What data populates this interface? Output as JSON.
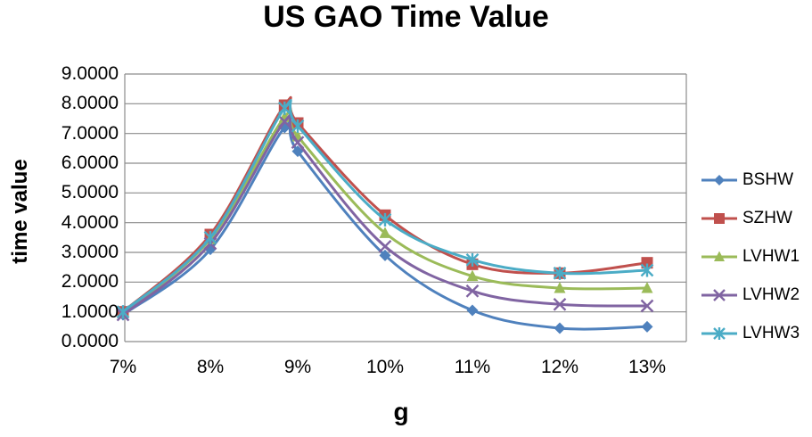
{
  "title": "US GAO Time Value",
  "chart_data": {
    "type": "line",
    "title": "US GAO Time Value",
    "xlabel": "g",
    "ylabel": "time value",
    "grid": true,
    "legend_position": "right",
    "xlim": [
      7,
      13.45
    ],
    "ylim": [
      0,
      9
    ],
    "x_tick_values": [
      7,
      8,
      9,
      10,
      11,
      12,
      13
    ],
    "x_tick_labels": [
      "7%",
      "8%",
      "9%",
      "10%",
      "11%",
      "12%",
      "13%"
    ],
    "y_tick_values": [
      0,
      1,
      2,
      3,
      4,
      5,
      6,
      7,
      8,
      9
    ],
    "y_tick_labels": [
      "0.0000",
      "1.0000",
      "2.0000",
      "3.0000",
      "4.0000",
      "5.0000",
      "6.0000",
      "7.0000",
      "8.0000",
      "9.0000"
    ],
    "x": [
      7,
      8,
      8.85,
      9,
      10,
      11,
      12,
      13
    ],
    "series": [
      {
        "name": "BSHW",
        "color": "#4F81BD",
        "marker": "diamond",
        "values": [
          0.9,
          3.1,
          7.2,
          6.4,
          2.9,
          1.05,
          0.45,
          0.5
        ]
      },
      {
        "name": "SZHW",
        "color": "#C0504D",
        "marker": "square",
        "values": [
          1.0,
          3.6,
          7.95,
          7.35,
          4.25,
          2.6,
          2.3,
          2.65
        ]
      },
      {
        "name": "LVHW1",
        "color": "#9BBB59",
        "marker": "triangle",
        "values": [
          0.95,
          3.45,
          7.55,
          6.9,
          3.65,
          2.2,
          1.8,
          1.8
        ]
      },
      {
        "name": "LVHW2",
        "color": "#8064A2",
        "marker": "x",
        "values": [
          0.9,
          3.3,
          7.4,
          6.7,
          3.2,
          1.7,
          1.25,
          1.2
        ]
      },
      {
        "name": "LVHW3",
        "color": "#4BACC6",
        "marker": "asterisk",
        "values": [
          1.0,
          3.5,
          7.85,
          7.25,
          4.1,
          2.75,
          2.3,
          2.4
        ]
      }
    ],
    "gridline_color": "#8C8C8C",
    "text_color": "#000000"
  }
}
